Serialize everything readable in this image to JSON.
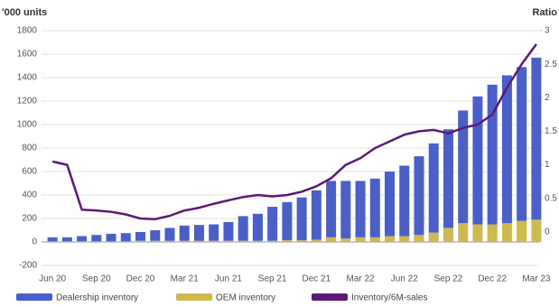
{
  "chart_data": {
    "type": "bar",
    "y_label": "'000 units",
    "y2_label": "Ratio",
    "categories": [
      "Jun 20",
      null,
      null,
      "Sep 20",
      null,
      null,
      "Dec 20",
      null,
      null,
      "Mar 21",
      null,
      null,
      "Jun 21",
      null,
      null,
      "Sep 21",
      null,
      null,
      "Dec 21",
      null,
      null,
      "Mar 22",
      null,
      null,
      "Jun 22",
      null,
      null,
      "Sep 22",
      null,
      null,
      "Dec 22",
      null,
      null,
      "Mar 23"
    ],
    "series": [
      {
        "name": "Dealership inventory",
        "color": "#4a5fc9",
        "values": [
          35,
          35,
          45,
          55,
          65,
          70,
          75,
          90,
          110,
          130,
          135,
          140,
          160,
          210,
          230,
          290,
          325,
          365,
          420,
          480,
          490,
          480,
          500,
          550,
          600,
          670,
          760,
          840,
          960,
          1090,
          1190,
          1260,
          1310,
          1380
        ]
      },
      {
        "name": "OEM inventory",
        "color": "#cdb94e",
        "values": [
          5,
          5,
          5,
          5,
          5,
          5,
          10,
          10,
          10,
          10,
          10,
          10,
          10,
          10,
          10,
          10,
          15,
          15,
          20,
          40,
          30,
          40,
          40,
          50,
          50,
          60,
          80,
          120,
          160,
          150,
          150,
          160,
          180,
          190
        ]
      },
      {
        "name": "Inventory/6M-sales",
        "color": "#5b1a7a",
        "type": "line",
        "axis": "y2",
        "values": [
          1.05,
          1.0,
          0.33,
          0.32,
          0.3,
          0.26,
          0.2,
          0.19,
          0.24,
          0.32,
          0.36,
          0.42,
          0.47,
          0.52,
          0.55,
          0.53,
          0.55,
          0.6,
          0.68,
          0.8,
          1.0,
          1.1,
          1.25,
          1.35,
          1.45,
          1.5,
          1.52,
          1.47,
          1.55,
          1.6,
          1.75,
          2.15,
          2.5,
          2.8
        ]
      }
    ],
    "ylim": [
      -200,
      1800
    ],
    "yticks": [
      -200,
      0,
      200,
      400,
      600,
      800,
      1000,
      1200,
      1400,
      1600,
      1800
    ],
    "y2lim": [
      -0.5,
      3
    ],
    "y2ticks": [
      0,
      0.5,
      1,
      1.5,
      2,
      2.5,
      3
    ],
    "grid": true,
    "legend": "bottom"
  }
}
